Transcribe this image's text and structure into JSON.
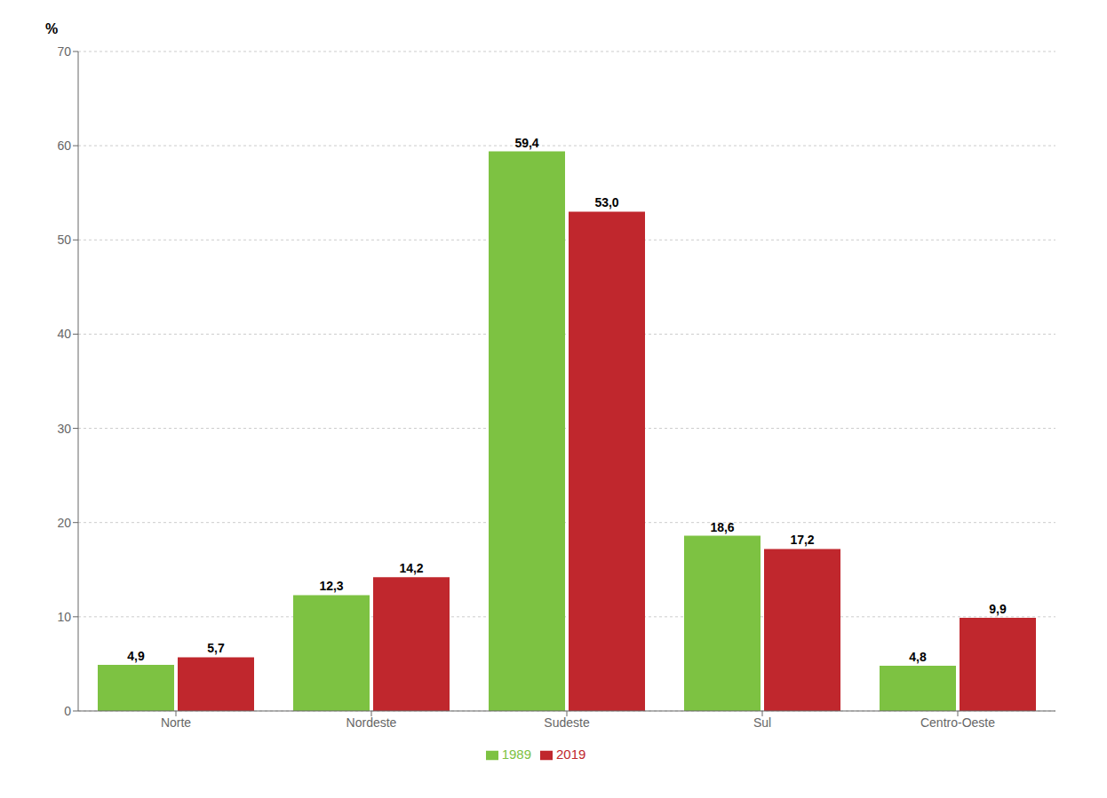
{
  "chart_data": {
    "type": "bar",
    "categories": [
      "Norte",
      "Nordeste",
      "Sudeste",
      "Sul",
      "Centro-Oeste"
    ],
    "series": [
      {
        "name": "1989",
        "color": "#7DC242",
        "values": [
          4.9,
          12.3,
          59.4,
          18.6,
          4.8
        ],
        "value_labels": [
          "4,9",
          "12,3",
          "59,4",
          "18,6",
          "4,8"
        ]
      },
      {
        "name": "2019",
        "color": "#C0272D",
        "values": [
          5.7,
          14.2,
          53.0,
          17.2,
          9.9
        ],
        "value_labels": [
          "5,7",
          "14,2",
          "53,0",
          "17,2",
          "9,9"
        ]
      }
    ],
    "ylabel": "%",
    "ylim": [
      0,
      70
    ],
    "yticks": [
      0,
      10,
      20,
      30,
      40,
      50,
      60,
      70
    ],
    "grid": true,
    "legend": "bottom",
    "data_labels": true
  }
}
